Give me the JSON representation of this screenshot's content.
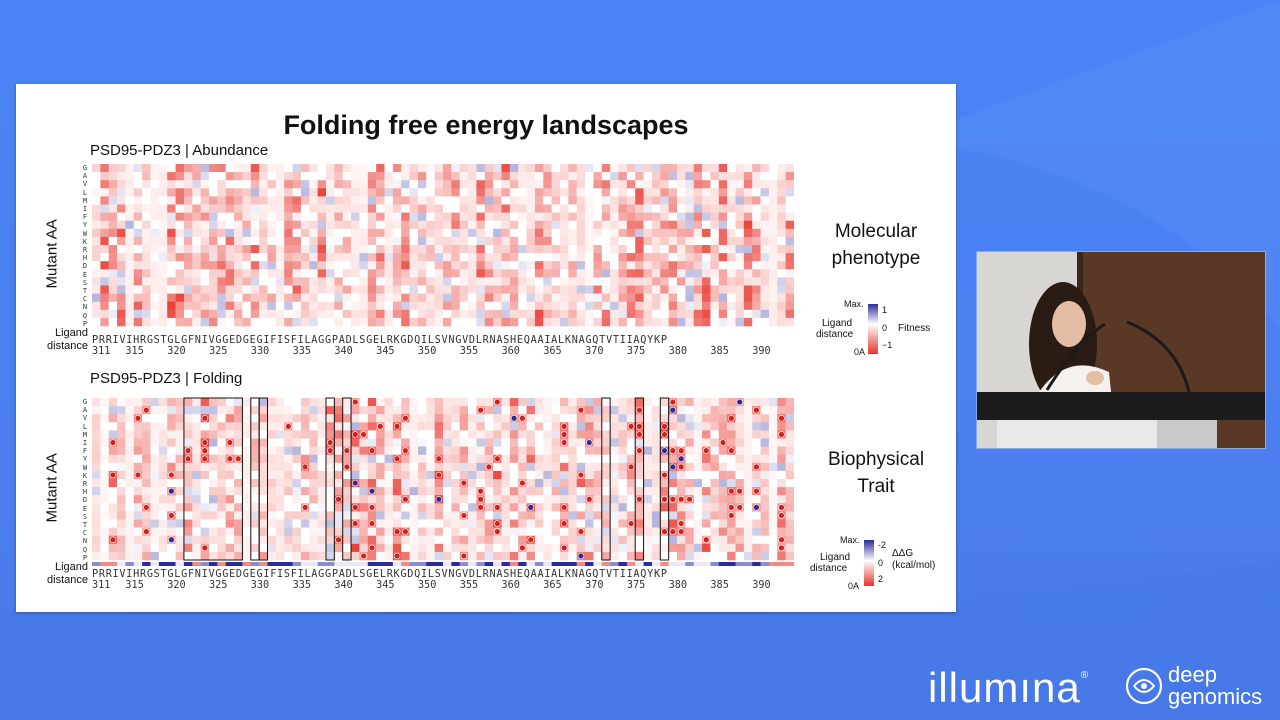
{
  "slide": {
    "title": "Folding free energy landscapes",
    "panel_top": {
      "title": "PSD95-PDZ3 | Abundance",
      "ylabel": "Mutant AA",
      "aa_letters": [
        "G",
        "A",
        "V",
        "L",
        "M",
        "I",
        "F",
        "Y",
        "W",
        "K",
        "R",
        "H",
        "D",
        "E",
        "S",
        "T",
        "C",
        "N",
        "Q",
        "P"
      ],
      "ligand_label_1": "Ligand",
      "ligand_label_2": "distance"
    },
    "panel_bottom": {
      "title": "PSD95-PDZ3 | Folding",
      "ylabel": "Mutant AA",
      "aa_letters": [
        "G",
        "A",
        "V",
        "L",
        "M",
        "I",
        "F",
        "Y",
        "W",
        "K",
        "R",
        "H",
        "D",
        "E",
        "S",
        "T",
        "C",
        "N",
        "Q",
        "P"
      ],
      "ligand_label_1": "Ligand",
      "ligand_label_2": "distance"
    },
    "sequence": "PRRIVIHRGSTGLGFNIVGGEDGEGIFISFILAGGPADLSGELRKGDQILSVNGVDLRNASHEQAAIALKNAGQTVTIIAQYKP",
    "positions": [
      "311",
      "315",
      "320",
      "325",
      "330",
      "335",
      "340",
      "345",
      "350",
      "355",
      "360",
      "365",
      "370",
      "375",
      "380",
      "385",
      "390"
    ],
    "side_top": [
      "Molecular",
      "phenotype"
    ],
    "side_bottom": [
      "Biophysical",
      "Trait"
    ],
    "legend_top": {
      "max": "Max.",
      "ligand": "Ligand",
      "distance": "distance",
      "zero_a": "0A",
      "scale_hi": "1",
      "scale_mid": "0",
      "scale_lo": "−1",
      "label": "Fitness"
    },
    "legend_bottom": {
      "max": "Max.",
      "ligand": "Ligand",
      "distance": "distance",
      "zero_a": "0A",
      "scale_hi": "-2",
      "scale_mid": "0",
      "scale_lo": "2",
      "label_1": "ΔΔG",
      "label_2": "(kcal/mol)"
    }
  },
  "logos": {
    "illumina": "illumına",
    "deep_1": "deep",
    "deep_2": "genomics"
  },
  "colors": {
    "red": "#e8332b",
    "blue": "#2b2b9c",
    "white": "#ffffff"
  }
}
